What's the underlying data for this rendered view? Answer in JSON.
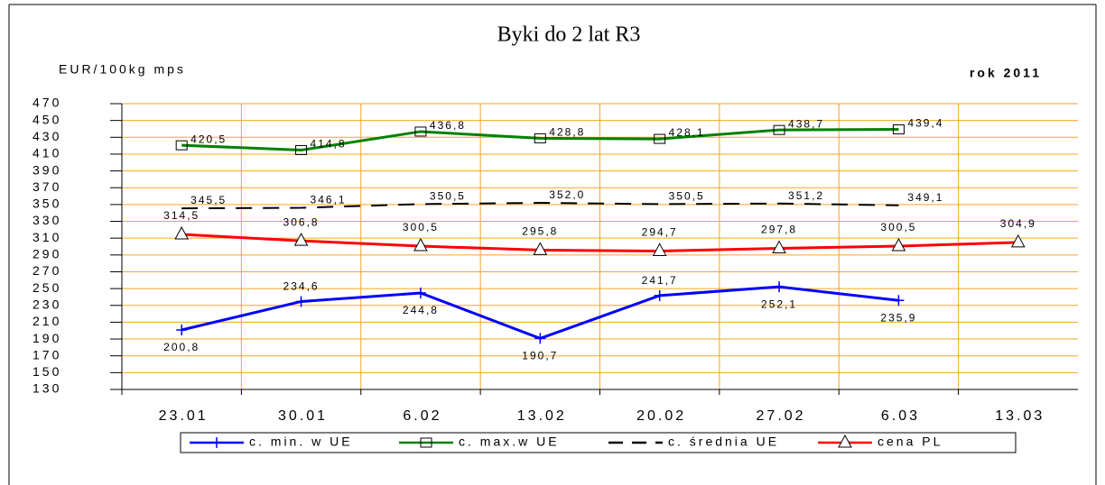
{
  "chart_data": {
    "type": "line",
    "title": "Byki do 2 lat R3",
    "y_label": "EUR/100kg mps",
    "annotation": "rok 2011",
    "categories": [
      "23.01",
      "30.01",
      "6.02",
      "13.02",
      "20.02",
      "27.02",
      "6.03",
      "13.03"
    ],
    "ylim": [
      130,
      470
    ],
    "yticks": [
      130,
      150,
      170,
      190,
      210,
      230,
      250,
      270,
      290,
      310,
      330,
      350,
      370,
      390,
      410,
      430,
      450,
      470
    ],
    "grid": true,
    "grid_color": "#f5a623",
    "legend": "bottom",
    "series": [
      {
        "name": "c. min. w UE",
        "color": "#0000ff",
        "marker": "plus",
        "values": [
          200.8,
          234.6,
          244.8,
          190.7,
          241.7,
          252.1,
          235.9,
          null
        ],
        "value_labels": [
          "200,8",
          "234,6",
          "244,8",
          "190,7",
          "241,7",
          "252,1",
          "235,9",
          null
        ]
      },
      {
        "name": "c. max.w UE",
        "color": "#008000",
        "marker": "square",
        "values": [
          420.5,
          414.8,
          436.8,
          428.8,
          428.1,
          438.7,
          439.4,
          null
        ],
        "value_labels": [
          "420,5",
          "414,8",
          "436,8",
          "428,8",
          "428,1",
          "438,7",
          "439,4",
          null
        ]
      },
      {
        "name": "c. średnia UE",
        "color": "#000000",
        "marker": "none",
        "dashed": true,
        "values": [
          345.5,
          346.1,
          350.5,
          352.0,
          350.5,
          351.2,
          349.1,
          null
        ],
        "value_labels": [
          "345,5",
          "346,1",
          "350,5",
          "352,0",
          "350,5",
          "351,2",
          "349,1",
          null
        ]
      },
      {
        "name": "cena PL",
        "color": "#ff0000",
        "marker": "triangle",
        "values": [
          314.5,
          306.8,
          300.5,
          295.8,
          294.7,
          297.8,
          300.5,
          304.9
        ],
        "value_labels": [
          "314,5",
          "306,8",
          "300,5",
          "295,8",
          "294,7",
          "297,8",
          "300,5",
          "304,9"
        ]
      }
    ]
  }
}
